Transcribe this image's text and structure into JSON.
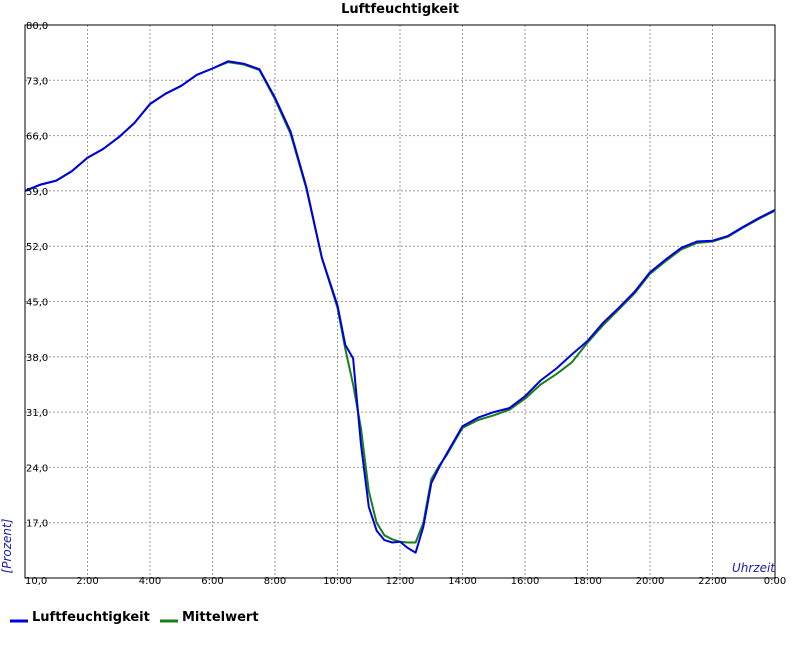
{
  "chart_data": {
    "type": "line",
    "title": "Luftfeuchtigkeit",
    "xlabel": "Uhrzeit",
    "ylabel": "[Prozent]",
    "xlim": [
      0,
      24
    ],
    "ylim": [
      10,
      80
    ],
    "grid": true,
    "legend_position": "bottom-left",
    "x_ticks": [
      0,
      2,
      4,
      6,
      8,
      10,
      12,
      14,
      16,
      18,
      20,
      22,
      24
    ],
    "x_tick_labels": [
      "10,0",
      "2:00",
      "4:00",
      "6:00",
      "8:00",
      "10:00",
      "12:00",
      "14:00",
      "16:00",
      "18:00",
      "20:00",
      "22:00",
      "0:00"
    ],
    "y_ticks": [
      10,
      17,
      24,
      31,
      38,
      45,
      52,
      59,
      66,
      73,
      80
    ],
    "y_tick_labels": [
      "10,0",
      "17,0",
      "24,0",
      "31,0",
      "38,0",
      "45,0",
      "52,0",
      "59,0",
      "66,0",
      "73,0",
      "80,0"
    ],
    "x": [
      0,
      0.5,
      1,
      1.5,
      2,
      2.5,
      3,
      3.5,
      4,
      4.5,
      5,
      5.5,
      6,
      6.5,
      7,
      7.5,
      8,
      8.5,
      9,
      9.5,
      10,
      10.25,
      10.5,
      10.75,
      11,
      11.25,
      11.5,
      11.75,
      12,
      12.25,
      12.5,
      12.75,
      13,
      13.25,
      13.5,
      13.75,
      14,
      14.5,
      15,
      15.5,
      16,
      16.5,
      17,
      17.5,
      18,
      18.5,
      19,
      19.5,
      20,
      20.5,
      21,
      21.5,
      22,
      22.5,
      23,
      23.5,
      24
    ],
    "series": [
      {
        "name": "Luftfeuchtigkeit",
        "color": "#0000dd",
        "values": [
          59.0,
          59.8,
          60.3,
          61.5,
          63.2,
          64.3,
          65.8,
          67.6,
          70.0,
          71.3,
          72.3,
          73.7,
          74.5,
          75.4,
          75.1,
          74.4,
          70.8,
          66.5,
          59.5,
          50.5,
          44.5,
          39.5,
          37.8,
          27.0,
          19.0,
          16.0,
          14.8,
          14.5,
          14.6,
          13.8,
          13.2,
          16.5,
          22.0,
          24.0,
          25.8,
          27.5,
          29.2,
          30.3,
          31.0,
          31.5,
          33.0,
          35.0,
          36.5,
          38.3,
          40.0,
          42.3,
          44.2,
          46.2,
          48.7,
          50.3,
          51.8,
          52.6,
          52.7,
          53.3,
          54.5,
          55.6,
          56.6
        ]
      },
      {
        "name": "Mittelwert",
        "color": "#1a7f1a",
        "values": [
          59.0,
          59.8,
          60.3,
          61.5,
          63.2,
          64.3,
          65.8,
          67.6,
          70.0,
          71.3,
          72.3,
          73.7,
          74.5,
          75.3,
          75.0,
          74.3,
          70.6,
          66.2,
          59.3,
          50.5,
          44.2,
          39.0,
          34.5,
          29.0,
          21.0,
          17.0,
          15.4,
          14.9,
          14.6,
          14.5,
          14.5,
          17.0,
          22.5,
          24.2,
          25.6,
          27.3,
          29.0,
          30.0,
          30.6,
          31.3,
          32.7,
          34.5,
          35.8,
          37.3,
          39.8,
          42.0,
          44.0,
          46.0,
          48.5,
          50.1,
          51.6,
          52.4,
          52.6,
          53.2,
          54.4,
          55.5,
          56.5
        ]
      }
    ]
  }
}
